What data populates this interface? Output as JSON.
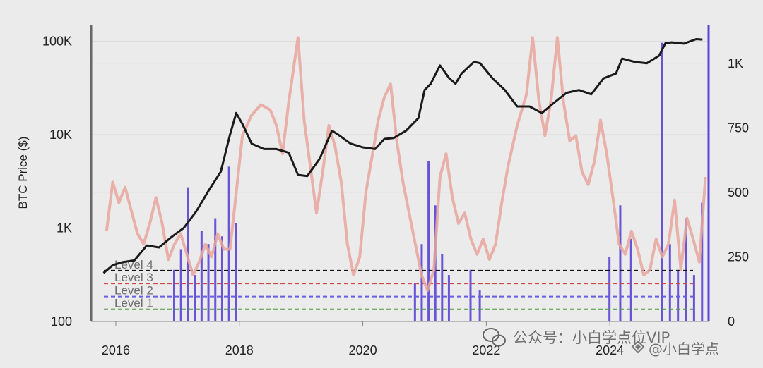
{
  "chart_data": {
    "type": "line",
    "ylabel": "BTC Price ($)",
    "x_ticks": [
      "2016",
      "2018",
      "2020",
      "2022",
      "2024"
    ],
    "y_left_scale": "log",
    "y_left_ticks": [
      "100",
      "1K",
      "10K",
      "100K"
    ],
    "y_left_range": [
      100,
      150000
    ],
    "y_right_ticks": [
      "0",
      "250",
      "500",
      "750",
      "1K"
    ],
    "y_right_range": [
      0,
      1150
    ],
    "x_range": [
      2015.6,
      2025.6
    ],
    "grid": true,
    "levels": [
      {
        "name": "Level 4",
        "price": 350,
        "color": "#111111"
      },
      {
        "name": "Level 3",
        "price": 255,
        "color": "#d04a4a"
      },
      {
        "name": "Level 2",
        "price": 185,
        "color": "#6a5ee0"
      },
      {
        "name": "Level 1",
        "price": 135,
        "color": "#4a9a3a"
      }
    ],
    "series": [
      {
        "color": "#1a1a1a",
        "axis": "left",
        "x": [
          2015.8,
          2015.95,
          2016.1,
          2016.3,
          2016.5,
          2016.7,
          2016.9,
          2017.1,
          2017.3,
          2017.5,
          2017.7,
          2017.85,
          2017.95,
          2018.05,
          2018.2,
          2018.4,
          2018.6,
          2018.8,
          2018.95,
          2019.1,
          2019.3,
          2019.5,
          2019.6,
          2019.8,
          2020.0,
          2020.2,
          2020.35,
          2020.5,
          2020.7,
          2020.9,
          2021.0,
          2021.1,
          2021.25,
          2021.4,
          2021.5,
          2021.6,
          2021.8,
          2021.9,
          2022.1,
          2022.3,
          2022.5,
          2022.7,
          2022.9,
          2023.1,
          2023.3,
          2023.5,
          2023.7,
          2023.9,
          2024.1,
          2024.2,
          2024.4,
          2024.6,
          2024.8,
          2024.9,
          2025.0,
          2025.2,
          2025.4,
          2025.5
        ],
        "values": [
          330,
          400,
          430,
          450,
          650,
          620,
          800,
          1000,
          1500,
          2500,
          4000,
          10000,
          17000,
          13000,
          8000,
          7000,
          7000,
          6400,
          3700,
          3600,
          5500,
          11000,
          10000,
          8000,
          7300,
          7000,
          9000,
          9200,
          11000,
          15000,
          30000,
          35000,
          55000,
          40000,
          35000,
          45000,
          60000,
          58000,
          40000,
          30000,
          20000,
          20000,
          17000,
          22000,
          28000,
          30000,
          27000,
          40000,
          45000,
          65000,
          60000,
          58000,
          70000,
          95000,
          97000,
          94000,
          105000,
          104000
        ]
      },
      {
        "color": "#e8a69c",
        "axis": "right",
        "x": [
          2015.85,
          2015.95,
          2016.05,
          2016.15,
          2016.25,
          2016.35,
          2016.45,
          2016.55,
          2016.65,
          2016.75,
          2016.85,
          2016.95,
          2017.05,
          2017.15,
          2017.25,
          2017.35,
          2017.45,
          2017.55,
          2017.65,
          2017.75,
          2017.85,
          2017.95,
          2018.05,
          2018.2,
          2018.35,
          2018.5,
          2018.6,
          2018.7,
          2018.8,
          2018.95,
          2019.05,
          2019.15,
          2019.25,
          2019.35,
          2019.45,
          2019.55,
          2019.65,
          2019.75,
          2019.85,
          2019.95,
          2020.05,
          2020.15,
          2020.25,
          2020.35,
          2020.45,
          2020.55,
          2020.65,
          2020.75,
          2020.85,
          2020.95,
          2021.05,
          2021.15,
          2021.25,
          2021.35,
          2021.45,
          2021.55,
          2021.65,
          2021.75,
          2021.85,
          2021.95,
          2022.05,
          2022.15,
          2022.25,
          2022.35,
          2022.5,
          2022.65,
          2022.75,
          2022.85,
          2022.95,
          2023.05,
          2023.15,
          2023.25,
          2023.35,
          2023.45,
          2023.55,
          2023.65,
          2023.75,
          2023.85,
          2023.95,
          2024.05,
          2024.15,
          2024.25,
          2024.35,
          2024.45,
          2024.55,
          2024.65,
          2024.75,
          2024.85,
          2024.95,
          2025.05,
          2025.15,
          2025.25,
          2025.35,
          2025.45,
          2025.55
        ],
        "values": [
          350,
          540,
          460,
          520,
          430,
          340,
          300,
          380,
          480,
          380,
          240,
          300,
          340,
          260,
          180,
          230,
          300,
          250,
          340,
          280,
          280,
          500,
          720,
          800,
          840,
          820,
          760,
          650,
          850,
          1100,
          780,
          600,
          420,
          580,
          760,
          680,
          540,
          300,
          180,
          250,
          500,
          640,
          780,
          870,
          920,
          700,
          540,
          420,
          300,
          180,
          120,
          200,
          560,
          650,
          480,
          380,
          420,
          320,
          260,
          320,
          240,
          300,
          460,
          600,
          760,
          880,
          1100,
          860,
          720,
          860,
          1100,
          850,
          700,
          720,
          580,
          530,
          620,
          780,
          650,
          480,
          300,
          260,
          350,
          280,
          180,
          200,
          320,
          250,
          300,
          470,
          200,
          400,
          320,
          230,
          560
        ]
      }
    ]
  },
  "watermark": {
    "line1": "公众号：小白学点位VIP",
    "line2": "@小白学点"
  }
}
